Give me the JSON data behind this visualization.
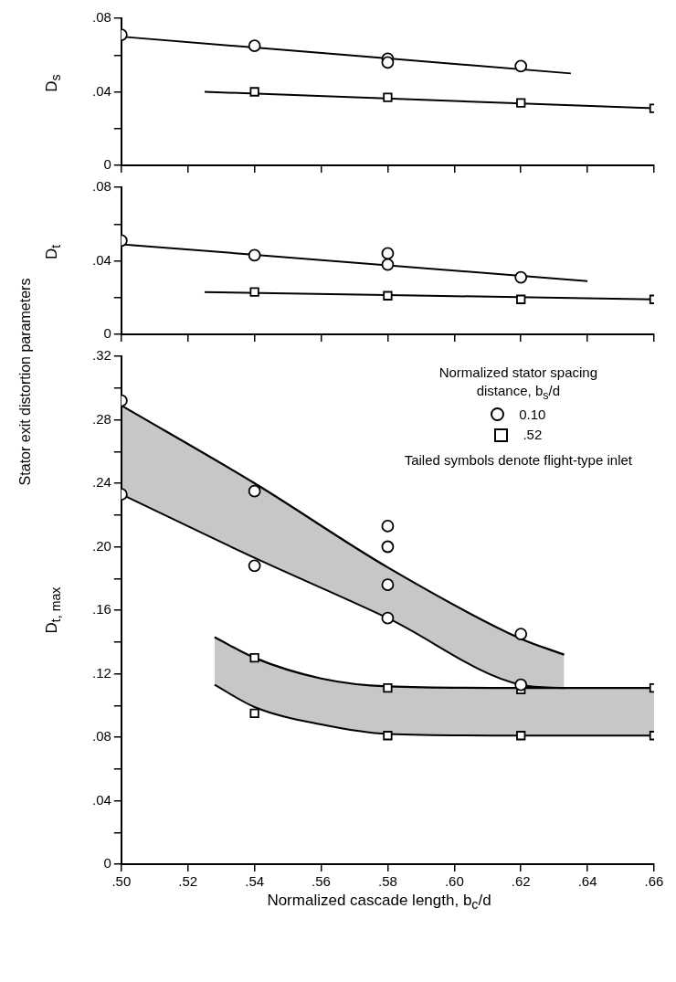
{
  "chart_data": [
    {
      "type": "scatter",
      "ylabel": "D$_{s}$",
      "xlim": [
        0.5,
        0.66
      ],
      "xticks": [
        {
          "value": 0.5,
          "label": null
        },
        {
          "value": 0.52,
          "label": null
        },
        {
          "value": 0.54,
          "label": null
        },
        {
          "value": 0.56,
          "label": null
        },
        {
          "value": 0.58,
          "label": null
        },
        {
          "value": 0.6,
          "label": null
        },
        {
          "value": 0.62,
          "label": null
        },
        {
          "value": 0.64,
          "label": null
        },
        {
          "value": 0.66,
          "label": null
        }
      ],
      "ylim": [
        0,
        0.08
      ],
      "yticks": [
        {
          "value": 0,
          "label": "0"
        },
        {
          "value": 0.02,
          "label": null
        },
        {
          "value": 0.04,
          "label": ".04"
        },
        {
          "value": 0.06,
          "label": null
        },
        {
          "value": 0.08,
          "label": ".08"
        }
      ],
      "tick_labels": "y",
      "series": [
        {
          "type": "scatter",
          "marker": "circle",
          "color": "#000000",
          "x": [
            0.5,
            0.54,
            0.58,
            0.58,
            0.62
          ],
          "values": [
            0.071,
            0.065,
            0.058,
            0.056,
            0.054
          ]
        },
        {
          "type": "scatter",
          "marker": "square",
          "color": "#000000",
          "x": [
            0.54,
            0.58,
            0.62,
            0.66
          ],
          "values": [
            0.04,
            0.037,
            0.034,
            0.031
          ]
        },
        {
          "type": "line",
          "marker": "none",
          "color": "#000000",
          "x": [
            0.5,
            0.635
          ],
          "values": [
            0.07,
            0.05
          ]
        },
        {
          "type": "line",
          "marker": "none",
          "color": "#000000",
          "x": [
            0.525,
            0.66
          ],
          "values": [
            0.04,
            0.031
          ]
        }
      ]
    },
    {
      "type": "scatter",
      "ylabel": "D$_{t}$",
      "xlim": [
        0.5,
        0.66
      ],
      "xticks": [
        {
          "value": 0.5,
          "label": null
        },
        {
          "value": 0.52,
          "label": null
        },
        {
          "value": 0.54,
          "label": null
        },
        {
          "value": 0.56,
          "label": null
        },
        {
          "value": 0.58,
          "label": null
        },
        {
          "value": 0.6,
          "label": null
        },
        {
          "value": 0.62,
          "label": null
        },
        {
          "value": 0.64,
          "label": null
        },
        {
          "value": 0.66,
          "label": null
        }
      ],
      "ylim": [
        0,
        0.08
      ],
      "yticks": [
        {
          "value": 0,
          "label": "0"
        },
        {
          "value": 0.02,
          "label": null
        },
        {
          "value": 0.04,
          "label": ".04"
        },
        {
          "value": 0.06,
          "label": null
        },
        {
          "value": 0.08,
          "label": ".08"
        }
      ],
      "tick_labels": "y",
      "series": [
        {
          "type": "scatter",
          "marker": "circle",
          "color": "#000000",
          "x": [
            0.5,
            0.54,
            0.58,
            0.58,
            0.62
          ],
          "values": [
            0.051,
            0.043,
            0.044,
            0.038,
            0.031
          ]
        },
        {
          "type": "scatter",
          "marker": "square",
          "color": "#000000",
          "x": [
            0.54,
            0.58,
            0.62,
            0.66
          ],
          "values": [
            0.023,
            0.021,
            0.019,
            0.019
          ]
        },
        {
          "type": "line",
          "marker": "none",
          "color": "#000000",
          "x": [
            0.5,
            0.64
          ],
          "values": [
            0.049,
            0.029
          ]
        },
        {
          "type": "line",
          "marker": "none",
          "color": "#000000",
          "x": [
            0.525,
            0.66
          ],
          "values": [
            0.023,
            0.019
          ]
        }
      ]
    },
    {
      "type": "scatter",
      "ylabel": "D$_{t, max}$",
      "xlabel": "Normalized cascade length, b$_{c}$/d",
      "legend": "top right",
      "legend_title": "Normalized stator spacing distance, b$_{s}$/d",
      "annotations": [
        "Tailed symbols denote flight-type inlet",
        "Stator exit distortion parameters"
      ],
      "xlim": [
        0.5,
        0.66
      ],
      "xticks": [
        {
          "value": 0.5,
          "label": ".50"
        },
        {
          "value": 0.52,
          "label": ".52"
        },
        {
          "value": 0.54,
          "label": ".54"
        },
        {
          "value": 0.56,
          "label": ".56"
        },
        {
          "value": 0.58,
          "label": ".58"
        },
        {
          "value": 0.6,
          "label": ".60"
        },
        {
          "value": 0.62,
          "label": ".62"
        },
        {
          "value": 0.64,
          "label": ".64"
        },
        {
          "value": 0.66,
          "label": ".66"
        }
      ],
      "ylim": [
        0,
        0.32
      ],
      "yticks": [
        {
          "value": 0,
          "label": "0"
        },
        {
          "value": 0.02,
          "label": null
        },
        {
          "value": 0.04,
          "label": ".04"
        },
        {
          "value": 0.06,
          "label": null
        },
        {
          "value": 0.08,
          "label": ".08"
        },
        {
          "value": 0.1,
          "label": null
        },
        {
          "value": 0.12,
          "label": ".12"
        },
        {
          "value": 0.14,
          "label": null
        },
        {
          "value": 0.16,
          "label": ".16"
        },
        {
          "value": 0.18,
          "label": null
        },
        {
          "value": 0.2,
          "label": ".20"
        },
        {
          "value": 0.22,
          "label": null
        },
        {
          "value": 0.24,
          "label": ".24"
        },
        {
          "value": 0.26,
          "label": null
        },
        {
          "value": 0.28,
          "label": ".28"
        },
        {
          "value": 0.3,
          "label": null
        },
        {
          "value": 0.32,
          "label": ".32"
        }
      ],
      "series": [
        {
          "type": "area",
          "color": "#000000",
          "x": [
            0.5,
            0.54,
            0.58,
            0.62,
            0.633
          ],
          "values": [
            0.289,
            0.24,
            0.187,
            0.142,
            0.132
          ]
        },
        {
          "type": "line",
          "marker": "none",
          "color": "#000000",
          "x": [
            0.5,
            0.54,
            0.58,
            0.62,
            0.633
          ],
          "values": [
            0.233,
            0.193,
            0.155,
            0.113,
            0.111
          ]
        },
        {
          "type": "area",
          "color": "#000000",
          "x": [
            0.528,
            0.54,
            0.56,
            0.58,
            0.62,
            0.66
          ],
          "values": [
            0.143,
            0.13,
            0.117,
            0.112,
            0.111,
            0.111
          ]
        },
        {
          "type": "line",
          "marker": "none",
          "color": "#000000",
          "x": [
            0.528,
            0.54,
            0.56,
            0.58,
            0.62,
            0.66
          ],
          "values": [
            0.113,
            0.099,
            0.088,
            0.082,
            0.081,
            0.081
          ]
        },
        {
          "type": "scatter",
          "name": "0.10",
          "marker": "circle",
          "color": "#000000",
          "x": [
            0.5,
            0.5,
            0.54,
            0.54,
            0.58,
            0.58,
            0.58,
            0.58,
            0.62,
            0.62
          ],
          "values": [
            0.292,
            0.233,
            0.235,
            0.188,
            0.213,
            0.2,
            0.176,
            0.155,
            0.145,
            0.113
          ]
        },
        {
          "type": "scatter",
          "name": ".52",
          "marker": "square",
          "color": "#000000",
          "x": [
            0.54,
            0.54,
            0.58,
            0.58,
            0.62,
            0.62,
            0.66,
            0.66
          ],
          "values": [
            0.13,
            0.095,
            0.111,
            0.081,
            0.11,
            0.081,
            0.111,
            0.081
          ]
        }
      ]
    }
  ]
}
